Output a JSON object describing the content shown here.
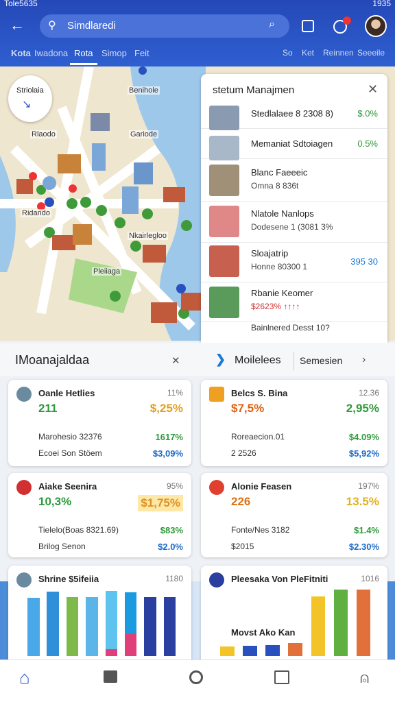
{
  "status_bar": {
    "left": "Tole5635",
    "right": "1935"
  },
  "search": {
    "query": "Simdlaredi"
  },
  "tabs": [
    "Kota",
    "Iwadona",
    "Rota",
    "Simop",
    "Feit"
  ],
  "active_tab": 2,
  "tabs_right": [
    "So",
    "Ket",
    "Reinnen",
    "Seeeile"
  ],
  "map": {
    "badge": "Striolaia",
    "labels": [
      "Benihole",
      "Rlaodo",
      "Gariode",
      "Ridando",
      "Nkairlegloo",
      "Pleiiaga"
    ]
  },
  "panel": {
    "title": "stetum Manajmen",
    "items": [
      {
        "name": "Stedlalaee 8 2308 8)",
        "value": "$.0%"
      },
      {
        "name": "Memaniat Sdtoiagen",
        "value": "0.5%"
      },
      {
        "name": "Blanc Faeeeic",
        "detail": "Omna 8 836t"
      },
      {
        "name": "Nlatole Nanlops",
        "detail": "Dodesene 1 (3081 3%"
      },
      {
        "name": "Sloajatrip",
        "detail": "Honne 80300 1",
        "value": "395 30"
      },
      {
        "name": "Rbanie Keomer",
        "detail": "$2623% ↑↑↑↑"
      }
    ],
    "footer": "Bainlnered Desst 10?"
  },
  "section": {
    "left_title": "IMoanajaldaa",
    "right_title": "Moilelees",
    "right_link": "Semesien"
  },
  "cards": [
    {
      "name": "Oanle Hetlies",
      "badge": "11%",
      "main": "211",
      "main2": "$,25%",
      "rows": [
        [
          "Marohesio 32376",
          "1617%"
        ],
        [
          "Ecoei Son Stöem",
          "$3,09%"
        ]
      ]
    },
    {
      "name": "Belcs S. Bina",
      "badge": "12.36",
      "main": "$7,5%",
      "main2": "2,95%",
      "rows": [
        [
          "Roreaecion.01",
          "$4.09%"
        ],
        [
          "2 2526",
          "$5,92%"
        ]
      ]
    },
    {
      "name": "Aiake Seenira",
      "badge": "95%",
      "main": "10,3%",
      "main2": "$1,75%",
      "rows": [
        [
          "Tielelo(Boas 8321.69)",
          "$83%"
        ],
        [
          "Brilog Senon",
          "$2.0%"
        ]
      ]
    },
    {
      "name": "Alonie Feasen",
      "badge": "197%",
      "main": "226",
      "main2": "13.5%",
      "rows": [
        [
          "Fonte/Nes 3182",
          "$1.4%"
        ],
        [
          "$2015",
          "$2.30%"
        ]
      ]
    },
    {
      "name": "Shrine $5ifeiia",
      "badge": "1180",
      "ylim": [
        0,
        100
      ],
      "bars": [
        [
          {
            "color": "#4aa8e8",
            "value": 85
          }
        ],
        [
          {
            "color": "#2f8fd8",
            "value": 94
          }
        ],
        [
          {
            "color": "#7dba4a",
            "value": 86
          }
        ],
        [
          {
            "color": "#5bb5e8",
            "value": 86
          }
        ],
        [
          {
            "color": "#e0407a",
            "value": 10
          },
          {
            "color": "#5fc3ef",
            "value": 85
          }
        ],
        [
          {
            "color": "#e0407a",
            "value": 32
          },
          {
            "color": "#1a9ae0",
            "value": 61
          }
        ],
        [
          {
            "color": "#2a3fa0",
            "value": 86
          }
        ],
        [
          {
            "color": "#2a3fa0",
            "value": 86
          }
        ]
      ]
    },
    {
      "name": "Pleesaka Von PleFitniti",
      "badge": "1016",
      "label": "Movst Ako Kan",
      "ylim": [
        0,
        100
      ],
      "bars": [
        [
          {
            "color": "#f2c42a",
            "value": 14
          }
        ],
        [
          {
            "color": "#2a50c0",
            "value": 15
          }
        ],
        [
          {
            "color": "#2a50c0",
            "value": 16
          }
        ],
        [
          {
            "color": "#e2703a",
            "value": 19
          }
        ],
        [
          {
            "color": "#f2c42a",
            "value": 87
          }
        ],
        [
          {
            "color": "#5fb040",
            "value": 97
          }
        ],
        [
          {
            "color": "#e2703a",
            "value": 97
          }
        ]
      ]
    }
  ]
}
